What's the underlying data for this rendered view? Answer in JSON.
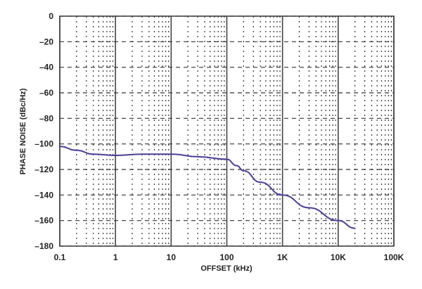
{
  "chart_data": {
    "type": "line",
    "title": "",
    "xlabel": "OFFSET (kHz)",
    "ylabel": "PHASE NOISE (dBc/Hz)",
    "x_scale": "log",
    "xlim": [
      0.1,
      100000
    ],
    "ylim": [
      -180,
      0
    ],
    "grid": true,
    "x_tick_labels": [
      "0.1",
      "1",
      "10",
      "100",
      "1K",
      "10K",
      "100K"
    ],
    "x_tick_values": [
      0.1,
      1,
      10,
      100,
      1000,
      10000,
      100000
    ],
    "y_tick_labels": [
      "0",
      "–20",
      "–40",
      "–60",
      "–80",
      "–100",
      "–120",
      "–140",
      "–160",
      "–180"
    ],
    "y_tick_values": [
      0,
      -20,
      -40,
      -60,
      -80,
      -100,
      -120,
      -140,
      -160,
      -180
    ],
    "line_color": "#4b3f9a",
    "series": [
      {
        "x": [
          0.1,
          0.2,
          0.4,
          1,
          3,
          10,
          30,
          100,
          150,
          200,
          400,
          1000,
          3000,
          10000,
          20000
        ],
        "y": [
          -102,
          -105,
          -108,
          -109,
          -108,
          -108,
          -110,
          -112,
          -117,
          -121,
          -130,
          -140,
          -150,
          -160,
          -166
        ]
      }
    ]
  }
}
